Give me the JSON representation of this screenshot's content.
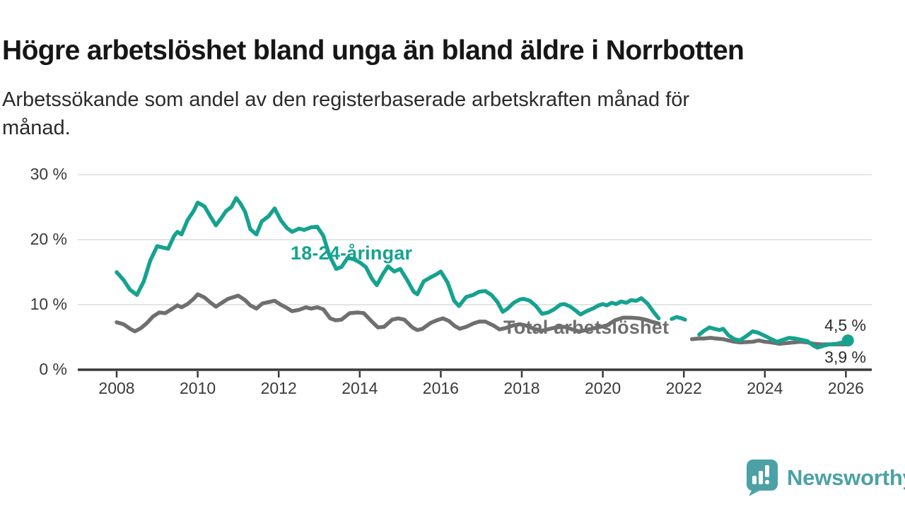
{
  "header": {
    "title": "Högre arbetslöshet bland unga än bland äldre i Norrbotten",
    "subtitle_line1": "Arbetssökande som andel av den registerbaserade arbetskraften månad för",
    "subtitle_line2": "månad."
  },
  "logo": {
    "text": "Newsworthy"
  },
  "chart_data": {
    "type": "line",
    "x_axis": {
      "tick_values": [
        2008,
        2010,
        2012,
        2014,
        2016,
        2018,
        2020,
        2022,
        2024,
        2026
      ],
      "tick_labels": [
        "2008",
        "2010",
        "2012",
        "2014",
        "2016",
        "2018",
        "2020",
        "2022",
        "2024",
        "2026"
      ],
      "range": [
        2007.0,
        2026.6
      ]
    },
    "y_axis": {
      "tick_values": [
        0,
        10,
        20,
        30
      ],
      "tick_labels": [
        "0 %",
        "10 %",
        "20 %",
        "30 %"
      ],
      "range": [
        0,
        30
      ],
      "gridlines": true
    },
    "annotations_note": "data gap in both series between mid-2021 and spring 2022",
    "series": [
      {
        "name": "18-24-åringar",
        "color": "#16a290",
        "end_dot": true,
        "latest_value_label": "4,5 %",
        "segments": [
          [
            [
              2008.0,
              15.0
            ],
            [
              2008.17,
              13.8
            ],
            [
              2008.33,
              12.3
            ],
            [
              2008.5,
              11.5
            ],
            [
              2008.67,
              13.6
            ],
            [
              2008.83,
              16.8
            ],
            [
              2009.0,
              19.0
            ],
            [
              2009.13,
              18.8
            ],
            [
              2009.27,
              18.6
            ],
            [
              2009.42,
              20.6
            ],
            [
              2009.5,
              21.2
            ],
            [
              2009.6,
              20.8
            ],
            [
              2009.75,
              23.0
            ],
            [
              2009.9,
              24.4
            ],
            [
              2010.0,
              25.7
            ],
            [
              2010.17,
              25.1
            ],
            [
              2010.33,
              23.4
            ],
            [
              2010.45,
              22.2
            ],
            [
              2010.58,
              23.3
            ],
            [
              2010.7,
              24.4
            ],
            [
              2010.83,
              25.0
            ],
            [
              2010.95,
              26.4
            ],
            [
              2011.05,
              25.6
            ],
            [
              2011.17,
              24.3
            ],
            [
              2011.3,
              21.6
            ],
            [
              2011.45,
              20.8
            ],
            [
              2011.58,
              22.8
            ],
            [
              2011.75,
              23.6
            ],
            [
              2011.9,
              24.8
            ],
            [
              2012.05,
              23.0
            ],
            [
              2012.2,
              21.8
            ],
            [
              2012.33,
              21.2
            ],
            [
              2012.5,
              21.7
            ],
            [
              2012.63,
              21.5
            ],
            [
              2012.8,
              21.9
            ],
            [
              2012.95,
              22.0
            ],
            [
              2013.1,
              20.6
            ],
            [
              2013.25,
              17.6
            ],
            [
              2013.42,
              15.5
            ],
            [
              2013.55,
              15.8
            ],
            [
              2013.7,
              17.2
            ],
            [
              2013.85,
              17.0
            ],
            [
              2014.0,
              16.5
            ],
            [
              2014.15,
              15.8
            ],
            [
              2014.3,
              14.0
            ],
            [
              2014.42,
              13.0
            ],
            [
              2014.58,
              14.8
            ],
            [
              2014.7,
              15.9
            ],
            [
              2014.85,
              15.1
            ],
            [
              2015.0,
              15.5
            ],
            [
              2015.17,
              13.8
            ],
            [
              2015.33,
              12.0
            ],
            [
              2015.42,
              11.6
            ],
            [
              2015.58,
              13.6
            ],
            [
              2015.75,
              14.2
            ],
            [
              2015.9,
              14.7
            ],
            [
              2016.0,
              15.1
            ],
            [
              2016.17,
              13.4
            ],
            [
              2016.33,
              10.6
            ],
            [
              2016.45,
              9.8
            ],
            [
              2016.63,
              11.2
            ],
            [
              2016.8,
              11.5
            ],
            [
              2016.95,
              12.0
            ],
            [
              2017.1,
              12.1
            ],
            [
              2017.25,
              11.5
            ],
            [
              2017.4,
              10.4
            ],
            [
              2017.53,
              8.9
            ],
            [
              2017.65,
              9.4
            ],
            [
              2017.8,
              10.3
            ],
            [
              2017.95,
              10.8
            ],
            [
              2018.05,
              10.9
            ],
            [
              2018.2,
              10.6
            ],
            [
              2018.35,
              9.8
            ],
            [
              2018.5,
              8.6
            ],
            [
              2018.65,
              8.8
            ],
            [
              2018.8,
              9.3
            ],
            [
              2018.95,
              10.0
            ],
            [
              2019.05,
              10.1
            ],
            [
              2019.2,
              9.7
            ],
            [
              2019.35,
              9.0
            ],
            [
              2019.45,
              8.5
            ],
            [
              2019.6,
              9.0
            ],
            [
              2019.75,
              9.4
            ],
            [
              2019.9,
              9.9
            ],
            [
              2020.0,
              10.1
            ],
            [
              2020.1,
              9.9
            ],
            [
              2020.22,
              10.3
            ],
            [
              2020.33,
              10.1
            ],
            [
              2020.45,
              10.5
            ],
            [
              2020.58,
              10.3
            ],
            [
              2020.7,
              10.7
            ],
            [
              2020.83,
              10.6
            ],
            [
              2020.95,
              11.0
            ],
            [
              2021.1,
              10.2
            ],
            [
              2021.25,
              8.9
            ],
            [
              2021.38,
              7.9
            ]
          ],
          [
            [
              2021.7,
              7.8
            ],
            [
              2021.82,
              8.1
            ],
            [
              2021.95,
              7.9
            ],
            [
              2022.03,
              7.7
            ]
          ],
          [
            [
              2022.38,
              5.4
            ],
            [
              2022.5,
              6.0
            ],
            [
              2022.63,
              6.5
            ],
            [
              2022.75,
              6.3
            ],
            [
              2022.88,
              6.1
            ],
            [
              2022.97,
              6.3
            ],
            [
              2023.1,
              5.3
            ],
            [
              2023.25,
              4.7
            ],
            [
              2023.38,
              4.5
            ],
            [
              2023.55,
              5.2
            ],
            [
              2023.7,
              5.9
            ],
            [
              2023.83,
              5.7
            ],
            [
              2023.97,
              5.3
            ],
            [
              2024.13,
              4.8
            ],
            [
              2024.3,
              4.3
            ],
            [
              2024.45,
              4.6
            ],
            [
              2024.6,
              4.9
            ],
            [
              2024.75,
              4.8
            ],
            [
              2024.9,
              4.6
            ],
            [
              2025.05,
              4.4
            ],
            [
              2025.2,
              3.7
            ],
            [
              2025.3,
              3.4
            ],
            [
              2025.45,
              3.7
            ],
            [
              2025.6,
              3.9
            ],
            [
              2025.78,
              4.0
            ],
            [
              2025.92,
              4.2
            ],
            [
              2026.05,
              4.5
            ]
          ]
        ]
      },
      {
        "name": "Total arbetslöshet",
        "color": "#6f6f6f",
        "end_dot": false,
        "latest_value_label": "3,9 %",
        "segments": [
          [
            [
              2008.0,
              7.3
            ],
            [
              2008.17,
              7.0
            ],
            [
              2008.33,
              6.3
            ],
            [
              2008.45,
              5.9
            ],
            [
              2008.6,
              6.4
            ],
            [
              2008.75,
              7.2
            ],
            [
              2008.9,
              8.2
            ],
            [
              2009.05,
              8.8
            ],
            [
              2009.2,
              8.7
            ],
            [
              2009.38,
              9.4
            ],
            [
              2009.5,
              9.9
            ],
            [
              2009.6,
              9.6
            ],
            [
              2009.75,
              10.1
            ],
            [
              2009.9,
              10.9
            ],
            [
              2010.0,
              11.6
            ],
            [
              2010.17,
              11.1
            ],
            [
              2010.3,
              10.4
            ],
            [
              2010.45,
              9.7
            ],
            [
              2010.6,
              10.3
            ],
            [
              2010.75,
              10.9
            ],
            [
              2010.9,
              11.2
            ],
            [
              2011.0,
              11.4
            ],
            [
              2011.17,
              10.7
            ],
            [
              2011.3,
              9.9
            ],
            [
              2011.45,
              9.4
            ],
            [
              2011.6,
              10.2
            ],
            [
              2011.75,
              10.4
            ],
            [
              2011.9,
              10.6
            ],
            [
              2012.05,
              10.0
            ],
            [
              2012.2,
              9.5
            ],
            [
              2012.33,
              9.0
            ],
            [
              2012.5,
              9.2
            ],
            [
              2012.67,
              9.6
            ],
            [
              2012.8,
              9.4
            ],
            [
              2012.95,
              9.6
            ],
            [
              2013.1,
              9.3
            ],
            [
              2013.27,
              7.9
            ],
            [
              2013.4,
              7.6
            ],
            [
              2013.55,
              7.7
            ],
            [
              2013.75,
              8.7
            ],
            [
              2013.95,
              8.8
            ],
            [
              2014.1,
              8.7
            ],
            [
              2014.3,
              7.4
            ],
            [
              2014.45,
              6.5
            ],
            [
              2014.6,
              6.6
            ],
            [
              2014.8,
              7.7
            ],
            [
              2014.95,
              7.9
            ],
            [
              2015.1,
              7.7
            ],
            [
              2015.3,
              6.5
            ],
            [
              2015.42,
              6.1
            ],
            [
              2015.55,
              6.3
            ],
            [
              2015.75,
              7.2
            ],
            [
              2015.9,
              7.6
            ],
            [
              2016.05,
              7.9
            ],
            [
              2016.2,
              7.5
            ],
            [
              2016.35,
              6.7
            ],
            [
              2016.47,
              6.3
            ],
            [
              2016.63,
              6.6
            ],
            [
              2016.8,
              7.1
            ],
            [
              2016.95,
              7.4
            ],
            [
              2017.1,
              7.4
            ],
            [
              2017.3,
              6.8
            ],
            [
              2017.45,
              6.2
            ],
            [
              2017.6,
              6.4
            ],
            [
              2017.78,
              6.8
            ],
            [
              2017.95,
              7.0
            ],
            [
              2018.1,
              6.8
            ],
            [
              2018.3,
              6.3
            ],
            [
              2018.5,
              6.0
            ],
            [
              2018.7,
              6.3
            ],
            [
              2018.9,
              6.6
            ],
            [
              2019.05,
              6.6
            ],
            [
              2019.25,
              6.2
            ],
            [
              2019.42,
              5.9
            ],
            [
              2019.6,
              6.1
            ],
            [
              2019.8,
              6.4
            ],
            [
              2019.95,
              6.6
            ],
            [
              2020.1,
              6.8
            ],
            [
              2020.3,
              7.6
            ],
            [
              2020.5,
              8.0
            ],
            [
              2020.7,
              8.0
            ],
            [
              2020.9,
              7.9
            ],
            [
              2021.05,
              7.7
            ],
            [
              2021.2,
              7.4
            ],
            [
              2021.38,
              7.1
            ]
          ],
          [
            [
              2022.2,
              4.7
            ],
            [
              2022.35,
              4.8
            ],
            [
              2022.5,
              4.8
            ],
            [
              2022.65,
              4.9
            ],
            [
              2022.8,
              4.8
            ],
            [
              2022.97,
              4.7
            ],
            [
              2023.1,
              4.5
            ],
            [
              2023.25,
              4.3
            ],
            [
              2023.4,
              4.2
            ],
            [
              2023.55,
              4.25
            ],
            [
              2023.7,
              4.3
            ],
            [
              2023.85,
              4.5
            ],
            [
              2024.0,
              4.3
            ],
            [
              2024.17,
              4.2
            ],
            [
              2024.35,
              4.0
            ],
            [
              2024.55,
              4.1
            ],
            [
              2024.7,
              4.2
            ],
            [
              2024.88,
              4.3
            ],
            [
              2025.05,
              4.2
            ],
            [
              2025.2,
              4.0
            ],
            [
              2025.38,
              3.9
            ],
            [
              2025.6,
              3.9
            ],
            [
              2025.8,
              3.9
            ],
            [
              2026.05,
              3.9
            ]
          ]
        ]
      }
    ]
  }
}
